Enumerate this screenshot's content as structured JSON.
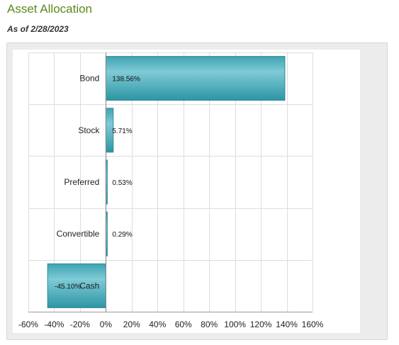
{
  "header": {
    "title": "Asset Allocation",
    "as_of": "As of 2/28/2023"
  },
  "colors": {
    "bar_fill": "#5ab4c2",
    "bar_stroke": "#2f8a97",
    "grid": "#dddddd",
    "title": "#5a8a1a"
  },
  "chart_data": {
    "type": "bar",
    "orientation": "horizontal",
    "title": "",
    "xlabel": "",
    "ylabel": "",
    "xlim": [
      -60,
      160
    ],
    "x_ticks": [
      "-60%",
      "-40%",
      "-20%",
      "0%",
      "20%",
      "40%",
      "60%",
      "80%",
      "100%",
      "120%",
      "140%",
      "160%"
    ],
    "x_tick_values": [
      -60,
      -40,
      -20,
      0,
      20,
      40,
      60,
      80,
      100,
      120,
      140,
      160
    ],
    "categories": [
      "Bond",
      "Stock",
      "Preferred",
      "Convertible",
      "Cash"
    ],
    "values": [
      138.56,
      5.71,
      0.53,
      0.29,
      -45.1
    ],
    "data_labels": [
      "138.56%",
      "5.71%",
      "0.53%",
      "0.29%",
      "-45.10%"
    ],
    "grid": true,
    "legend": "none"
  }
}
